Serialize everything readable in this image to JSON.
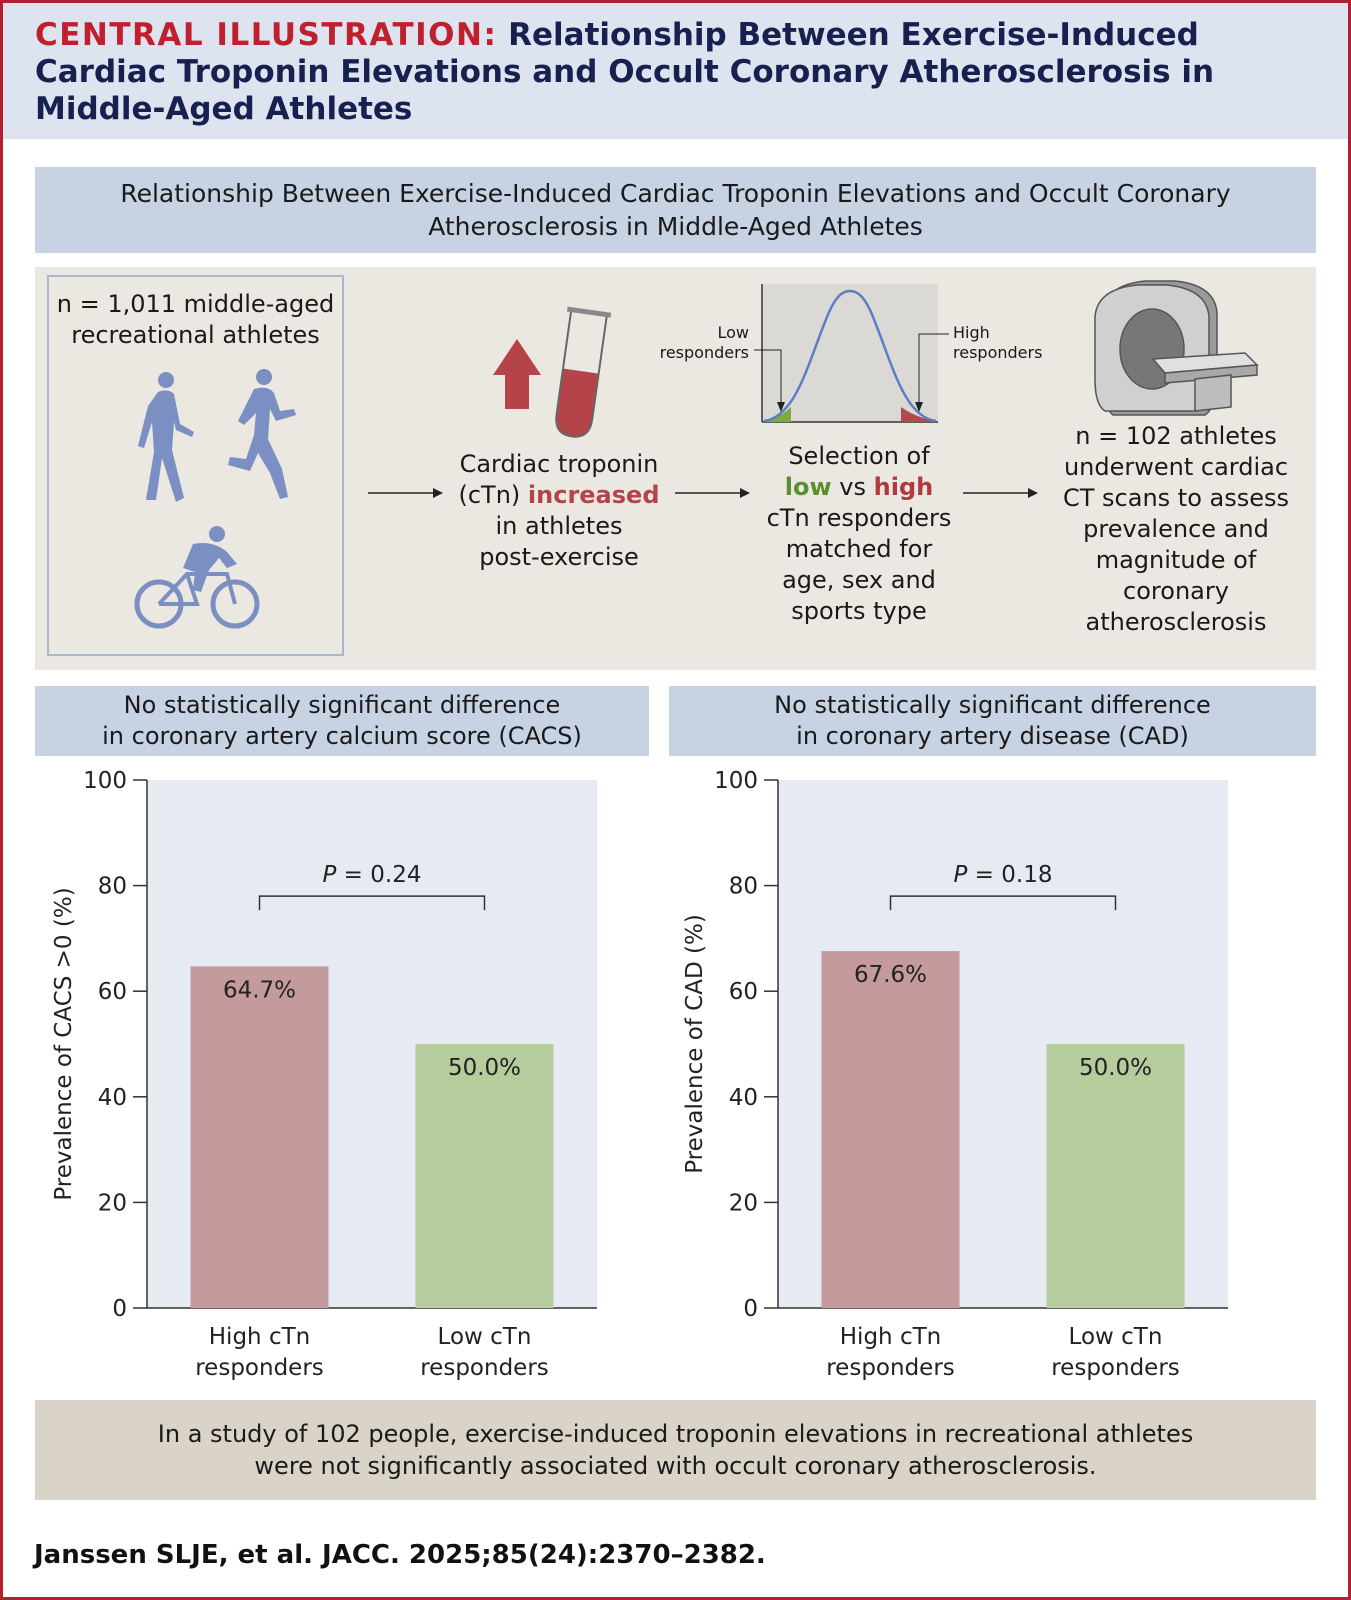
{
  "header": {
    "label": "CENTRAL ILLUSTRATION:",
    "title": "Relationship Between Exercise-Induced Cardiac Troponin Elevations and Occult Coronary Atherosclerosis in Middle-Aged Athletes"
  },
  "top_box": {
    "text": "Relationship Between Exercise-Induced Cardiac Troponin Elevations and Occult Coronary Atherosclerosis in Middle-Aged Athletes"
  },
  "flow": {
    "sample": {
      "line1": "n = 1,011 middle-aged",
      "line2": "recreational athletes"
    },
    "troponin": {
      "line1": "Cardiac troponin",
      "line2_pre": "(cTn) ",
      "line2_hl": "increased",
      "line3": "in athletes",
      "line4": "post-exercise"
    },
    "selection": {
      "line1": "Selection of",
      "low": "low",
      "vs": " vs ",
      "high": "high",
      "line3": "cTn responders",
      "line4": "matched for",
      "line5": "age, sex and",
      "line6": "sports type"
    },
    "curve_labels": {
      "low1": "Low",
      "low2": "responders",
      "high1": "High",
      "high2": "responders"
    },
    "ct": {
      "line1": "n = 102 athletes",
      "line2": "underwent cardiac",
      "line3": "CT scans to assess",
      "line4": "prevalence and",
      "line5": "magnitude of",
      "line6": "coronary",
      "line7": "atherosclerosis"
    },
    "icons": [
      "walking-person-icon",
      "running-person-icon",
      "cyclist-icon",
      "up-arrow-icon",
      "test-tube-icon",
      "ct-scanner-icon"
    ],
    "colors": {
      "arrow": "#b5444a",
      "tube_fill": "#b5444a",
      "figures": "#7b8fc2",
      "curve": "#5b7fc4",
      "low_fill": "#7eaa3c",
      "high_fill": "#b04a4e"
    }
  },
  "panels": [
    {
      "header1": "No statistically significant difference",
      "header2": "in coronary artery calcium score (CACS)"
    },
    {
      "header1": "No statistically significant difference",
      "header2": "in coronary artery disease (CAD)"
    }
  ],
  "chart_data": [
    {
      "type": "bar",
      "categories": [
        "High cTn responders",
        "Low cTn responders"
      ],
      "category_lines": [
        [
          "High cTn",
          "responders"
        ],
        [
          "Low cTn",
          "responders"
        ]
      ],
      "values": [
        64.7,
        50.0
      ],
      "data_labels": [
        "64.7%",
        "50.0%"
      ],
      "ylabel": "Prevalence of CACS >0 (%)",
      "ylim": [
        0,
        100
      ],
      "yticks": [
        0,
        20,
        40,
        60,
        80,
        100
      ],
      "ytick_labels": [
        "0",
        "20",
        "40",
        "60",
        "80",
        "100"
      ],
      "bracket_y": 78,
      "p_label": "P",
      "p_value": " = 0.24",
      "colors": [
        "#c49a9c",
        "#b6cc9c"
      ]
    },
    {
      "type": "bar",
      "categories": [
        "High cTn responders",
        "Low cTn responders"
      ],
      "category_lines": [
        [
          "High cTn",
          "responders"
        ],
        [
          "Low cTn",
          "responders"
        ]
      ],
      "values": [
        67.6,
        50.0
      ],
      "data_labels": [
        "67.6%",
        "50.0%"
      ],
      "ylabel": "Prevalence of CAD (%)",
      "ylim": [
        0,
        100
      ],
      "yticks": [
        0,
        20,
        40,
        60,
        80,
        100
      ],
      "ytick_labels": [
        "0",
        "20",
        "40",
        "60",
        "80",
        "100"
      ],
      "bracket_y": 78,
      "p_label": "P",
      "p_value": " = 0.18",
      "colors": [
        "#c49a9c",
        "#b6cc9c"
      ]
    }
  ],
  "footer": {
    "line1": "In a study of 102 people, exercise-induced troponin elevations in recreational athletes",
    "line2": "were not significantly associated with occult coronary atherosclerosis."
  },
  "citation": "Janssen SLJE, et al. JACC. 2025;85(24):2370–2382."
}
